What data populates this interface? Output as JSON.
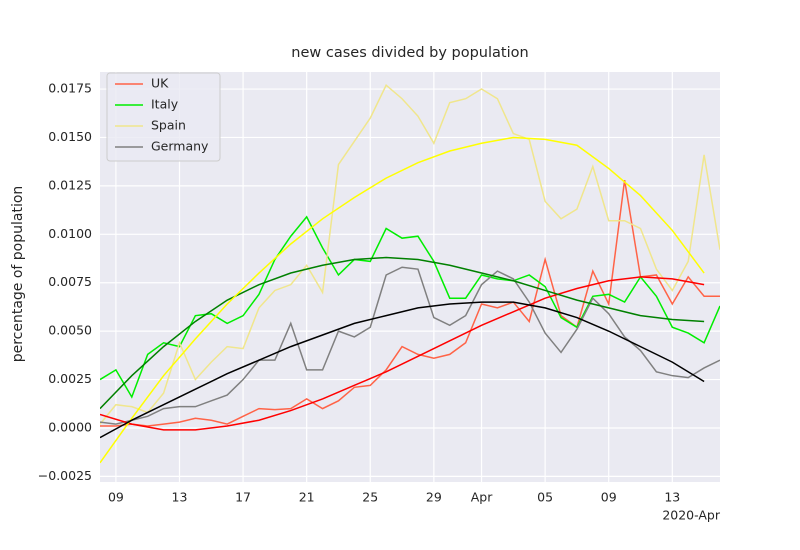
{
  "chart_data": {
    "type": "line",
    "title": "new cases divided by population",
    "y_label": "percentage of population",
    "x_offset_label": "2020-Apr",
    "legend": "upper left",
    "grid": true,
    "xlim": [
      "2020-03-08",
      "2020-04-16"
    ],
    "ylim": [
      -0.00279,
      0.01838
    ],
    "xticks": [
      {
        "value": "2020-03-09",
        "label": "09"
      },
      {
        "value": "2020-03-13",
        "label": "13"
      },
      {
        "value": "2020-03-17",
        "label": "17"
      },
      {
        "value": "2020-03-21",
        "label": "21"
      },
      {
        "value": "2020-03-25",
        "label": "25"
      },
      {
        "value": "2020-03-29",
        "label": "29"
      },
      {
        "value": "2020-04-01",
        "label": "Apr"
      },
      {
        "value": "2020-04-05",
        "label": "05"
      },
      {
        "value": "2020-04-09",
        "label": "09"
      },
      {
        "value": "2020-04-13",
        "label": "13"
      }
    ],
    "yticks": [
      {
        "value": -0.0025,
        "label": "−0.0025"
      },
      {
        "value": 0,
        "label": "0.0000"
      },
      {
        "value": 0.0025,
        "label": "0.0025"
      },
      {
        "value": 0.005,
        "label": "0.0050"
      },
      {
        "value": 0.0075,
        "label": "0.0075"
      },
      {
        "value": 0.01,
        "label": "0.0100"
      },
      {
        "value": 0.0125,
        "label": "0.0125"
      },
      {
        "value": 0.015,
        "label": "0.0150"
      },
      {
        "value": 0.0175,
        "label": "0.0175"
      }
    ],
    "x": [
      "2020-03-08",
      "2020-03-09",
      "2020-03-10",
      "2020-03-11",
      "2020-03-12",
      "2020-03-13",
      "2020-03-14",
      "2020-03-15",
      "2020-03-16",
      "2020-03-17",
      "2020-03-18",
      "2020-03-19",
      "2020-03-20",
      "2020-03-21",
      "2020-03-22",
      "2020-03-23",
      "2020-03-24",
      "2020-03-25",
      "2020-03-26",
      "2020-03-27",
      "2020-03-28",
      "2020-03-29",
      "2020-03-30",
      "2020-03-31",
      "2020-04-01",
      "2020-04-02",
      "2020-04-03",
      "2020-04-04",
      "2020-04-05",
      "2020-04-06",
      "2020-04-07",
      "2020-04-08",
      "2020-04-09",
      "2020-04-10",
      "2020-04-11",
      "2020-04-12",
      "2020-04-13",
      "2020-04-14",
      "2020-04-15",
      "2020-04-16"
    ],
    "series": [
      {
        "name": "UK",
        "color": "#ff6347",
        "values": [
          0.0001,
          0.0001,
          0.0002,
          0.0001,
          0.0002,
          0.0003,
          0.0005,
          0.0004,
          0.0002,
          0.0006,
          0.001,
          0.00095,
          0.001,
          0.0015,
          0.001,
          0.0014,
          0.0021,
          0.0022,
          0.003,
          0.0042,
          0.0038,
          0.0036,
          0.0038,
          0.0044,
          0.0064,
          0.0062,
          0.0065,
          0.0055,
          0.0087,
          0.0058,
          0.0052,
          0.0081,
          0.0064,
          0.0128,
          0.0078,
          0.0079,
          0.0064,
          0.0078,
          0.0068,
          0.0068
        ]
      },
      {
        "name": "Italy",
        "color": "#00ee00",
        "values": [
          0.0025,
          0.003,
          0.0016,
          0.0038,
          0.0044,
          0.0042,
          0.0058,
          0.0059,
          0.0054,
          0.0058,
          0.0069,
          0.0087,
          0.0099,
          0.0109,
          0.0093,
          0.0079,
          0.0087,
          0.0086,
          0.0103,
          0.0098,
          0.0099,
          0.0086,
          0.0067,
          0.0067,
          0.0079,
          0.0077,
          0.0076,
          0.0079,
          0.0073,
          0.0057,
          0.0052,
          0.0068,
          0.0069,
          0.0065,
          0.0078,
          0.0068,
          0.0052,
          0.0049,
          0.0044,
          0.0063
        ]
      },
      {
        "name": "Spain",
        "color": "#f0e68c",
        "values": [
          0.0002,
          0.0012,
          0.0011,
          0.0008,
          0.0018,
          0.0044,
          0.0025,
          0.0034,
          0.0042,
          0.0041,
          0.0062,
          0.0071,
          0.0074,
          0.0084,
          0.007,
          0.0136,
          0.0148,
          0.016,
          0.0177,
          0.017,
          0.0161,
          0.0147,
          0.0168,
          0.017,
          0.0175,
          0.017,
          0.0152,
          0.0149,
          0.0117,
          0.0108,
          0.0113,
          0.0135,
          0.0107,
          0.0107,
          0.0103,
          0.0082,
          0.0071,
          0.0086,
          0.0141,
          0.0092
        ]
      },
      {
        "name": "Germany",
        "color": "#808080",
        "values": [
          0.0003,
          0.0002,
          0.0004,
          0.0006,
          0.001,
          0.0011,
          0.0011,
          0.0014,
          0.0017,
          0.0025,
          0.0035,
          0.0035,
          0.0054,
          0.003,
          0.003,
          0.005,
          0.0047,
          0.0052,
          0.0079,
          0.0083,
          0.0082,
          0.0057,
          0.0053,
          0.0058,
          0.0074,
          0.0081,
          0.0077,
          0.0065,
          0.0049,
          0.0039,
          0.0051,
          0.0067,
          0.0059,
          0.0047,
          0.004,
          0.0029,
          0.0027,
          0.0026,
          0.0031,
          0.0035
        ]
      }
    ],
    "fits": [
      {
        "color": "#ff0000",
        "x": [
          "2020-03-08",
          "2020-03-10",
          "2020-03-12",
          "2020-03-14",
          "2020-03-16",
          "2020-03-18",
          "2020-03-20",
          "2020-03-22",
          "2020-03-24",
          "2020-03-26",
          "2020-03-28",
          "2020-03-30",
          "2020-04-01",
          "2020-04-03",
          "2020-04-05",
          "2020-04-07",
          "2020-04-09",
          "2020-04-11",
          "2020-04-13",
          "2020-04-15"
        ],
        "values": [
          0.0007,
          0.0002,
          -0.0001,
          -0.0001,
          0.0001,
          0.0004,
          0.0009,
          0.0015,
          0.0022,
          0.0029,
          0.0037,
          0.0045,
          0.0053,
          0.006,
          0.0067,
          0.0072,
          0.0076,
          0.0078,
          0.0077,
          0.0074
        ]
      },
      {
        "color": "#008000",
        "x": [
          "2020-03-08",
          "2020-03-10",
          "2020-03-12",
          "2020-03-14",
          "2020-03-16",
          "2020-03-18",
          "2020-03-20",
          "2020-03-22",
          "2020-03-24",
          "2020-03-26",
          "2020-03-28",
          "2020-03-30",
          "2020-04-01",
          "2020-04-03",
          "2020-04-05",
          "2020-04-07",
          "2020-04-09",
          "2020-04-11",
          "2020-04-13",
          "2020-04-15"
        ],
        "values": [
          0.001,
          0.0027,
          0.0042,
          0.0055,
          0.0066,
          0.0074,
          0.008,
          0.0084,
          0.0087,
          0.0088,
          0.0087,
          0.0084,
          0.008,
          0.0076,
          0.0071,
          0.0066,
          0.0062,
          0.0058,
          0.0056,
          0.0055
        ]
      },
      {
        "color": "#ffff00",
        "x": [
          "2020-03-08",
          "2020-03-10",
          "2020-03-12",
          "2020-03-14",
          "2020-03-16",
          "2020-03-18",
          "2020-03-20",
          "2020-03-22",
          "2020-03-24",
          "2020-03-26",
          "2020-03-28",
          "2020-03-30",
          "2020-04-01",
          "2020-04-03",
          "2020-04-05",
          "2020-04-07",
          "2020-04-09",
          "2020-04-11",
          "2020-04-13",
          "2020-04-15"
        ],
        "values": [
          -0.0018,
          0.0005,
          0.0027,
          0.0046,
          0.0064,
          0.008,
          0.0095,
          0.0108,
          0.0119,
          0.0129,
          0.0137,
          0.0143,
          0.0147,
          0.015,
          0.0149,
          0.0146,
          0.0134,
          0.012,
          0.0102,
          0.008
        ]
      },
      {
        "color": "#000000",
        "x": [
          "2020-03-08",
          "2020-03-10",
          "2020-03-12",
          "2020-03-14",
          "2020-03-16",
          "2020-03-18",
          "2020-03-20",
          "2020-03-22",
          "2020-03-24",
          "2020-03-26",
          "2020-03-28",
          "2020-03-30",
          "2020-04-01",
          "2020-04-03",
          "2020-04-05",
          "2020-04-07",
          "2020-04-09",
          "2020-04-11",
          "2020-04-13",
          "2020-04-15"
        ],
        "values": [
          -0.0005,
          0.0004,
          0.0012,
          0.002,
          0.0028,
          0.0035,
          0.0042,
          0.0048,
          0.0054,
          0.0058,
          0.0062,
          0.0064,
          0.0065,
          0.0065,
          0.0062,
          0.0057,
          0.005,
          0.0042,
          0.0034,
          0.0024
        ]
      }
    ]
  }
}
